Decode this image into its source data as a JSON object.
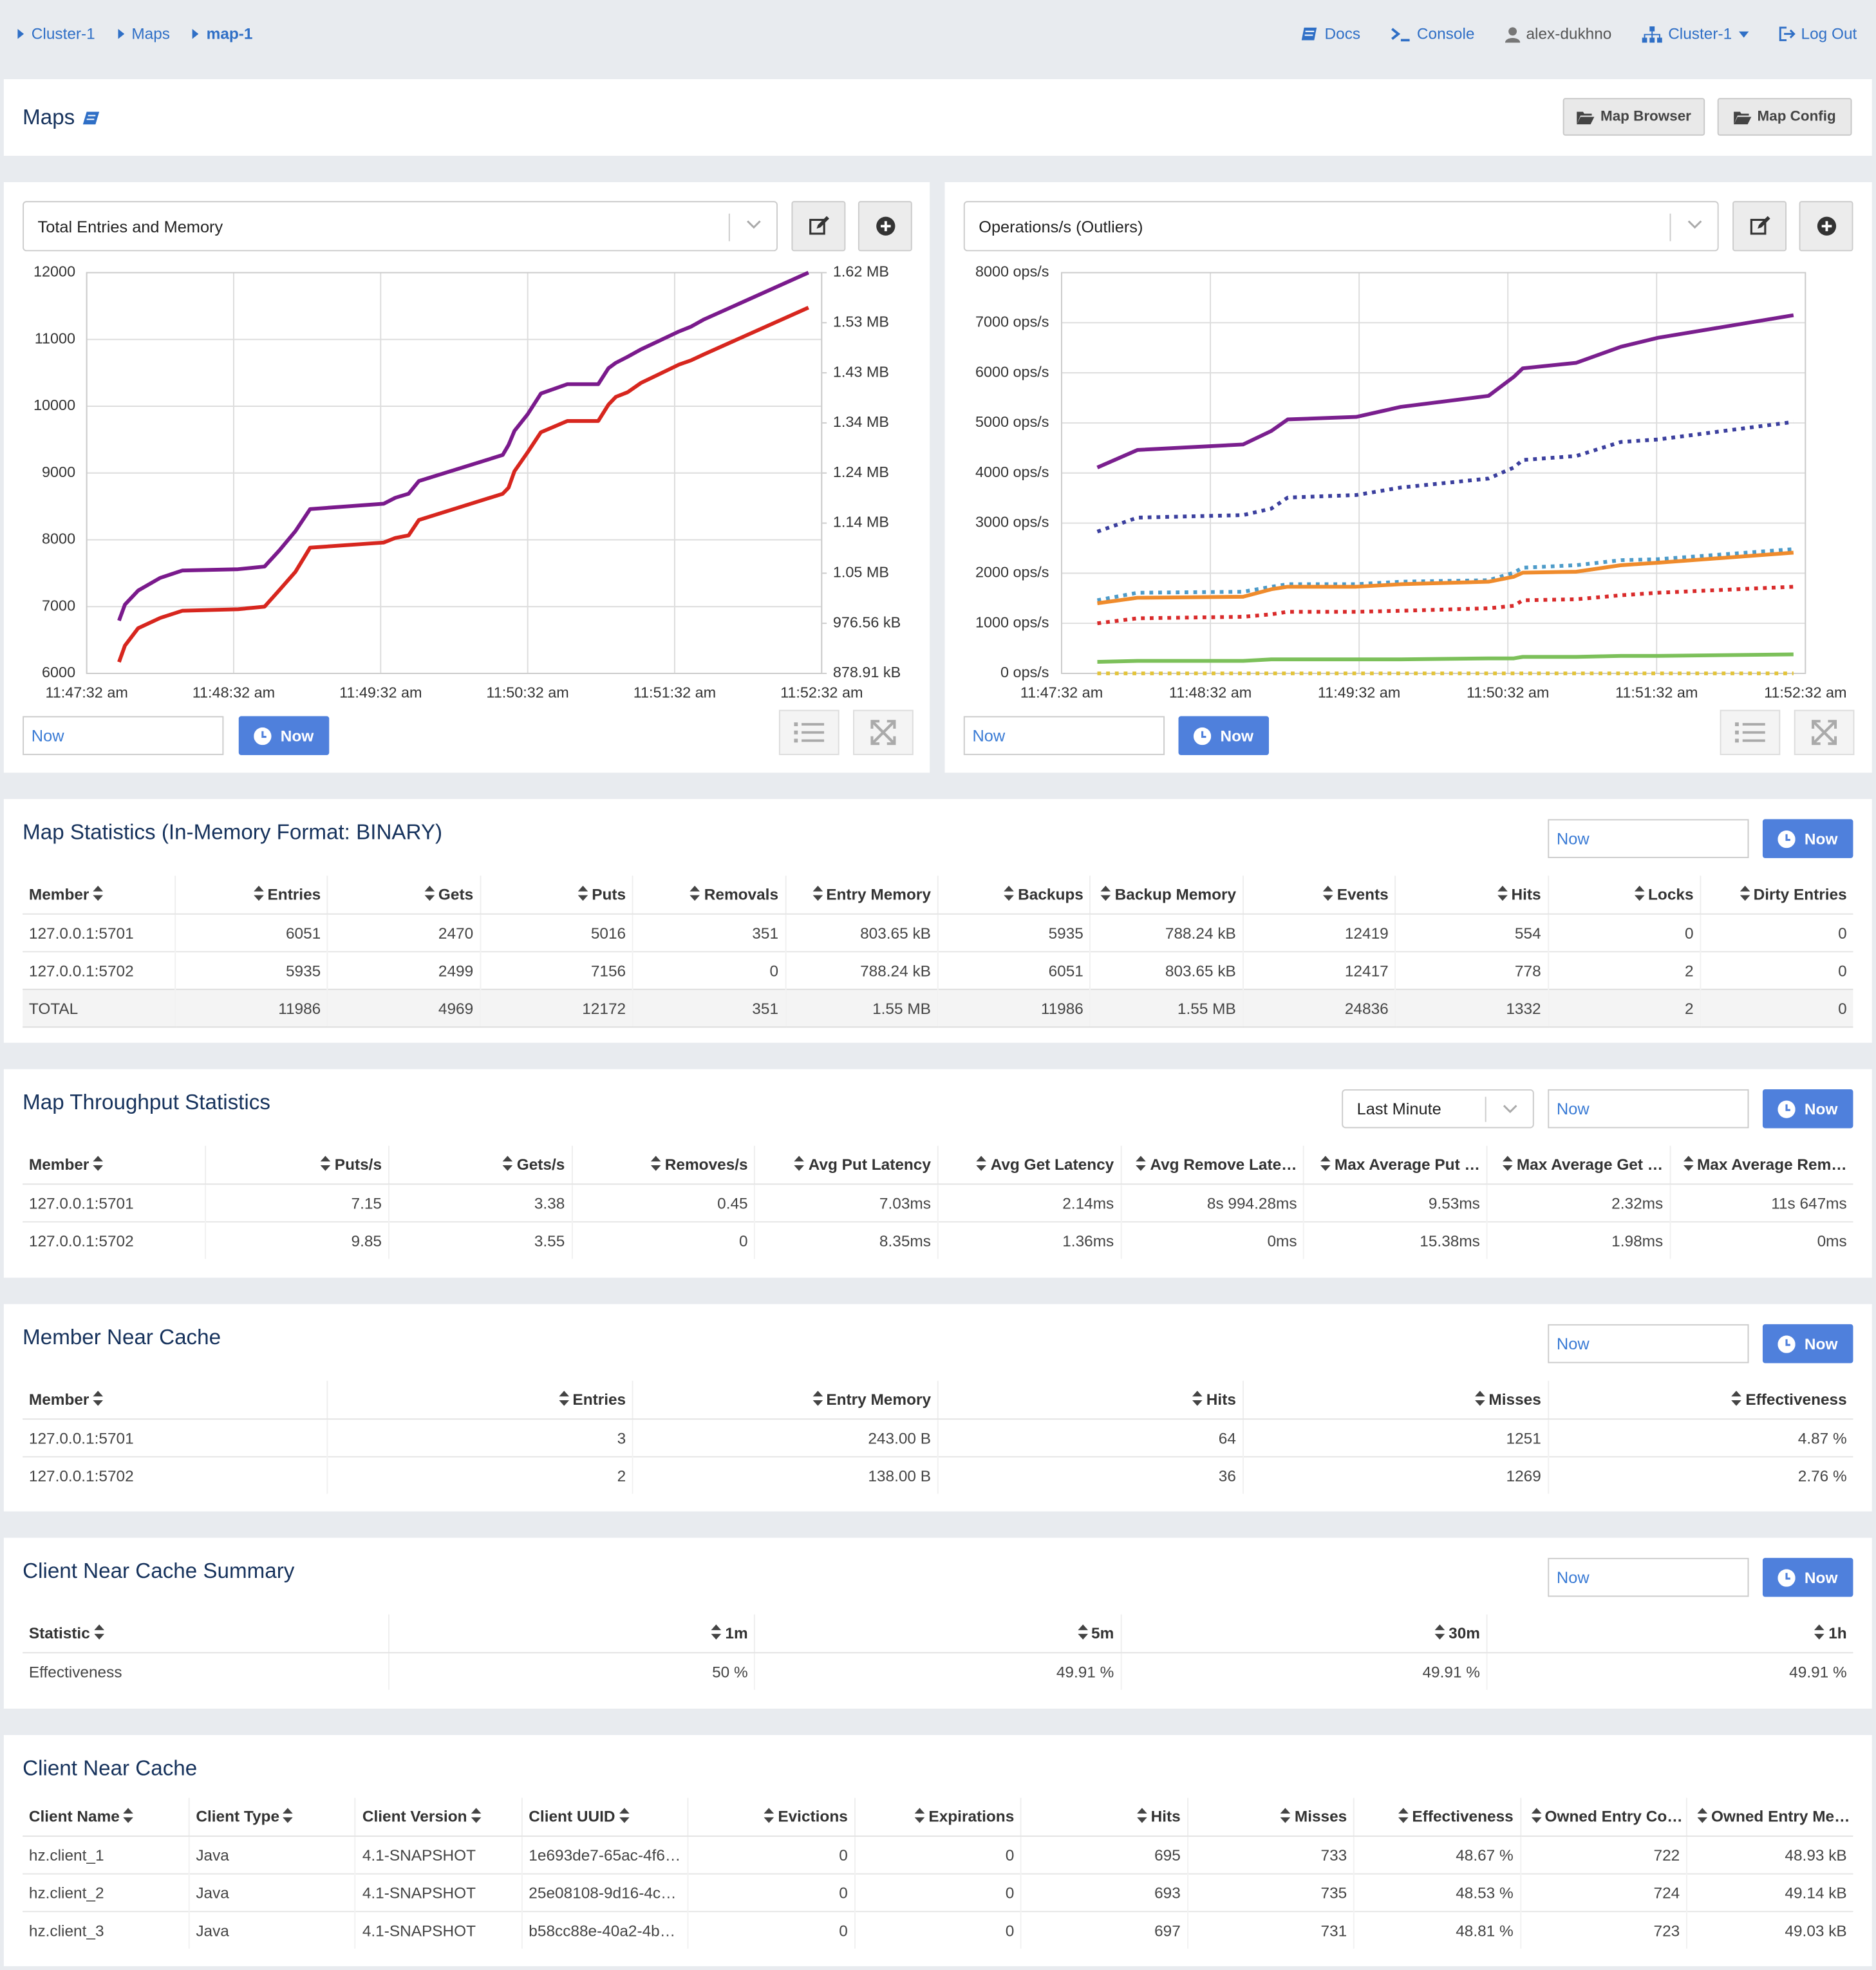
{
  "breadcrumb": [
    "Cluster-1",
    "Maps",
    "map-1"
  ],
  "nav": [
    "Docs",
    "Console",
    "alex-dukhno",
    "Cluster-1",
    "Log Out"
  ],
  "header": {
    "title": "Maps",
    "buttons": [
      "Map Browser",
      "Map Config"
    ]
  },
  "chart_panels": [
    {
      "selector": "Total Entries and Memory",
      "time_input": "Now",
      "time_button": "Now"
    },
    {
      "selector": "Operations/s (Outliers)",
      "time_input": "Now",
      "time_button": "Now"
    }
  ],
  "chart_data": [
    {
      "type": "line",
      "grid": true,
      "x": [
        0.22,
        0.26,
        0.35,
        0.5,
        0.65,
        1.03,
        1.21,
        1.31,
        1.42,
        1.52,
        2.02,
        2.1,
        2.19,
        2.26,
        2.83,
        2.87,
        2.91,
        3,
        3.09,
        3.27,
        3.48,
        3.55,
        3.6,
        3.68,
        3.77,
        4.03,
        4.11,
        4.2,
        4.91
      ],
      "xlim": [
        0,
        5
      ],
      "xticks": [
        {
          "value": 0,
          "label": "11:47:32 am"
        },
        {
          "value": 1,
          "label": "11:48:32 am"
        },
        {
          "value": 2,
          "label": "11:49:32 am"
        },
        {
          "value": 3,
          "label": "11:50:32 am"
        },
        {
          "value": 4,
          "label": "11:51:32 am"
        },
        {
          "value": 5,
          "label": "11:52:32 am"
        }
      ],
      "ylim": [
        6000,
        12000
      ],
      "yticks": [
        6000,
        7000,
        8000,
        9000,
        10000,
        11000,
        12000
      ],
      "y2lim": [
        878.91,
        1660.16
      ],
      "y2ticks": [
        {
          "value": 878.91,
          "label": "878.91 kB"
        },
        {
          "value": 976.56,
          "label": "976.56 kB"
        },
        {
          "value": 1074.22,
          "label": "1.05 MB"
        },
        {
          "value": 1171.88,
          "label": "1.14 MB"
        },
        {
          "value": 1269.53,
          "label": "1.24 MB"
        },
        {
          "value": 1367.19,
          "label": "1.34 MB"
        },
        {
          "value": 1464.84,
          "label": "1.43 MB"
        },
        {
          "value": 1562.5,
          "label": "1.53 MB"
        },
        {
          "value": 1660.16,
          "label": "1.62 MB"
        }
      ],
      "series": [
        {
          "color": "#7a1a8c",
          "style": "solid",
          "values": [
            6790,
            7030,
            7240,
            7430,
            7540,
            7560,
            7600,
            7840,
            8130,
            8460,
            8540,
            8630,
            8690,
            8880,
            9270,
            9420,
            9630,
            9880,
            10190,
            10330,
            10330,
            10570,
            10650,
            10740,
            10850,
            11120,
            11190,
            11300,
            12000
          ]
        },
        {
          "color": "#d7261e",
          "style": "solid",
          "axis": "y2",
          "values": [
            901,
            933,
            967,
            987,
            1001,
            1004,
            1009,
            1041,
            1077,
            1124,
            1134,
            1143,
            1148,
            1178,
            1229,
            1241,
            1273,
            1310,
            1349,
            1371,
            1371,
            1403,
            1418,
            1427,
            1445,
            1481,
            1489,
            1501,
            1592
          ]
        }
      ]
    },
    {
      "type": "line",
      "grid": true,
      "x": [
        0.24,
        0.51,
        1.22,
        1.41,
        1.52,
        1.98,
        2.28,
        2.87,
        3.04,
        3.1,
        3.46,
        3.76,
        4.01,
        4.92
      ],
      "xlim": [
        0,
        5
      ],
      "xticks": [
        {
          "value": 0,
          "label": "11:47:32 am"
        },
        {
          "value": 1,
          "label": "11:48:32 am"
        },
        {
          "value": 2,
          "label": "11:49:32 am"
        },
        {
          "value": 3,
          "label": "11:50:32 am"
        },
        {
          "value": 4,
          "label": "11:51:32 am"
        },
        {
          "value": 5,
          "label": "11:52:32 am"
        }
      ],
      "ylim": [
        0,
        8000
      ],
      "yticks": [
        {
          "value": 0,
          "label": "0 ops/s"
        },
        {
          "value": 1000,
          "label": "1000 ops/s"
        },
        {
          "value": 2000,
          "label": "2000 ops/s"
        },
        {
          "value": 3000,
          "label": "3000 ops/s"
        },
        {
          "value": 4000,
          "label": "4000 ops/s"
        },
        {
          "value": 5000,
          "label": "5000 ops/s"
        },
        {
          "value": 6000,
          "label": "6000 ops/s"
        },
        {
          "value": 7000,
          "label": "7000 ops/s"
        },
        {
          "value": 8000,
          "label": "8000 ops/s"
        }
      ],
      "series": [
        {
          "color": "#7a1f8e",
          "style": "solid",
          "values": [
            4110,
            4460,
            4570,
            4840,
            5070,
            5120,
            5320,
            5540,
            5920,
            6090,
            6200,
            6520,
            6700,
            7150
          ]
        },
        {
          "color": "#3b3f9e",
          "style": "dotted",
          "values": [
            2830,
            3110,
            3160,
            3290,
            3510,
            3560,
            3710,
            3890,
            4110,
            4260,
            4340,
            4620,
            4670,
            5020
          ]
        },
        {
          "color": "#4d9bc9",
          "style": "dotted",
          "values": [
            1460,
            1610,
            1630,
            1730,
            1780,
            1780,
            1830,
            1860,
            2010,
            2110,
            2160,
            2260,
            2280,
            2480
          ]
        },
        {
          "color": "#ef8b2c",
          "style": "solid",
          "values": [
            1400,
            1510,
            1530,
            1680,
            1730,
            1730,
            1780,
            1830,
            1930,
            2010,
            2030,
            2160,
            2210,
            2410
          ]
        },
        {
          "color": "#d92a2a",
          "style": "dotted",
          "values": [
            1000,
            1100,
            1130,
            1180,
            1230,
            1230,
            1250,
            1300,
            1350,
            1460,
            1480,
            1560,
            1610,
            1730
          ]
        },
        {
          "color": "#7cc05a",
          "style": "solid",
          "values": [
            230,
            250,
            250,
            280,
            280,
            280,
            280,
            300,
            300,
            330,
            330,
            350,
            350,
            380
          ]
        },
        {
          "color": "#e3c43a",
          "style": "dotted",
          "values": [
            0,
            0,
            0,
            0,
            0,
            0,
            0,
            0,
            0,
            0,
            0,
            0,
            0,
            0
          ]
        }
      ]
    }
  ],
  "tables": [
    {
      "title": "Map Statistics (In-Memory Format: BINARY)",
      "time_input": "Now",
      "time_button": "Now",
      "columns": [
        "Member",
        "Entries",
        "Gets",
        "Puts",
        "Removals",
        "Entry Memory",
        "Backups",
        "Backup Memory",
        "Events",
        "Hits",
        "Locks",
        "Dirty Entries"
      ],
      "rows": [
        [
          "127.0.0.1:5701",
          "6051",
          "2470",
          "5016",
          "351",
          "803.65 kB",
          "5935",
          "788.24 kB",
          "12419",
          "554",
          "0",
          "0"
        ],
        [
          "127.0.0.1:5702",
          "5935",
          "2499",
          "7156",
          "0",
          "788.24 kB",
          "6051",
          "803.65 kB",
          "12417",
          "778",
          "2",
          "0"
        ],
        [
          "TOTAL",
          "11986",
          "4969",
          "12172",
          "351",
          "1.55 MB",
          "11986",
          "1.55 MB",
          "24836",
          "1332",
          "2",
          "0"
        ]
      ]
    },
    {
      "title": "Map Throughput Statistics",
      "select": "Last Minute",
      "time_input": "Now",
      "time_button": "Now",
      "columns": [
        "Member",
        "Puts/s",
        "Gets/s",
        "Removes/s",
        "Avg Put Latency",
        "Avg Get Latency",
        "Avg Remove Late…",
        "Max Average Put …",
        "Max Average Get …",
        "Max Average Rem…"
      ],
      "rows": [
        [
          "127.0.0.1:5701",
          "7.15",
          "3.38",
          "0.45",
          "7.03ms",
          "2.14ms",
          "8s 994.28ms",
          "9.53ms",
          "2.32ms",
          "11s 647ms"
        ],
        [
          "127.0.0.1:5702",
          "9.85",
          "3.55",
          "0",
          "8.35ms",
          "1.36ms",
          "0ms",
          "15.38ms",
          "1.98ms",
          "0ms"
        ]
      ]
    },
    {
      "title": "Member Near Cache",
      "time_input": "Now",
      "time_button": "Now",
      "columns": [
        "Member",
        "Entries",
        "Entry Memory",
        "Hits",
        "Misses",
        "Effectiveness"
      ],
      "rows": [
        [
          "127.0.0.1:5701",
          "3",
          "243.00 B",
          "64",
          "1251",
          "4.87 %"
        ],
        [
          "127.0.0.1:5702",
          "2",
          "138.00 B",
          "36",
          "1269",
          "2.76 %"
        ]
      ]
    },
    {
      "title": "Client Near Cache Summary",
      "time_input": "Now",
      "time_button": "Now",
      "columns": [
        "Statistic",
        "1m",
        "5m",
        "30m",
        "1h"
      ],
      "rows": [
        [
          "Effectiveness",
          "50 %",
          "49.91 %",
          "49.91 %",
          "49.91 %"
        ]
      ]
    },
    {
      "title": "Client Near Cache",
      "columns": [
        "Client Name",
        "Client Type",
        "Client Version",
        "Client UUID",
        "Evictions",
        "Expirations",
        "Hits",
        "Misses",
        "Effectiveness",
        "Owned Entry Co…",
        "Owned Entry Me…"
      ],
      "rows": [
        [
          "hz.client_1",
          "Java",
          "4.1-SNAPSHOT",
          "1e693de7-65ac-4f6…",
          "0",
          "0",
          "695",
          "733",
          "48.67 %",
          "722",
          "48.93 kB"
        ],
        [
          "hz.client_2",
          "Java",
          "4.1-SNAPSHOT",
          "25e08108-9d16-4c…",
          "0",
          "0",
          "693",
          "735",
          "48.53 %",
          "724",
          "49.14 kB"
        ],
        [
          "hz.client_3",
          "Java",
          "4.1-SNAPSHOT",
          "b58cc88e-40a2-4b…",
          "0",
          "0",
          "697",
          "731",
          "48.81 %",
          "723",
          "49.03 kB"
        ]
      ]
    }
  ]
}
